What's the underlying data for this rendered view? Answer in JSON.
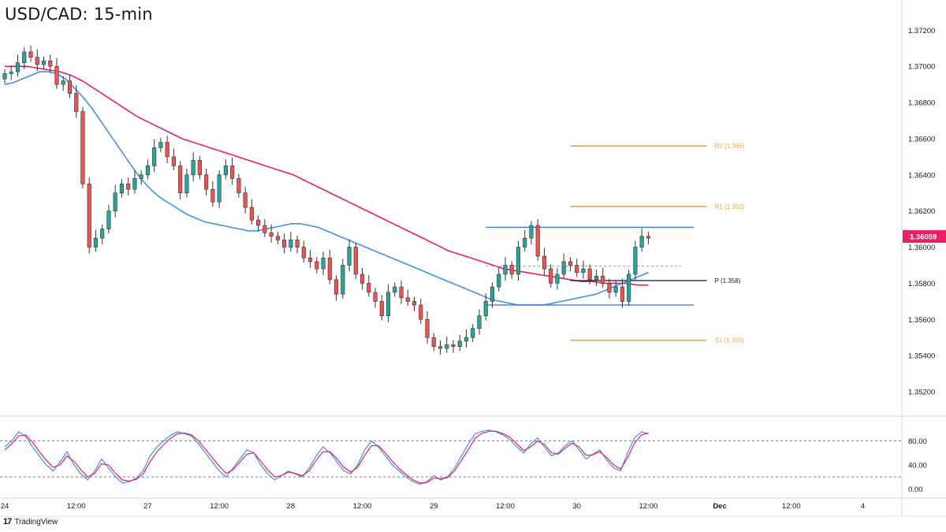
{
  "title": "USD/CAD: 15-min",
  "branding": {
    "logo": "17",
    "name": "TradingView"
  },
  "colors": {
    "bull": "#26a69a",
    "bear": "#ef5350",
    "wick": "#333333",
    "ma_short": "#3d93e6",
    "ma_long": "#e91e63",
    "pivot_levels": "#f2a03d",
    "range_lines": "#2f6fd6",
    "pivot_line": "#131722",
    "price_badge": "#e91e63",
    "stoch_k": "#3d93e6",
    "stoch_d": "#e91e63"
  },
  "price_badge": "1.36059",
  "chart_data": [
    {
      "type": "candlestick",
      "title": "USD/CAD: 15-min",
      "ylim": [
        1.351,
        1.3728
      ],
      "y_ticks": [
        "1.37200",
        "1.37000",
        "1.36800",
        "1.36600",
        "1.36400",
        "1.36200",
        "1.36000",
        "1.35800",
        "1.35600",
        "1.35400",
        "1.35200"
      ],
      "x_ticks": [
        {
          "t": 0,
          "label": "24"
        },
        {
          "t": 11,
          "label": "12:00"
        },
        {
          "t": 22,
          "label": "27"
        },
        {
          "t": 33,
          "label": "12:00"
        },
        {
          "t": 44,
          "label": "28"
        },
        {
          "t": 55,
          "label": "12:00"
        },
        {
          "t": 66,
          "label": "29"
        },
        {
          "t": 77,
          "label": "12:00"
        },
        {
          "t": 88,
          "label": "30"
        },
        {
          "t": 99,
          "label": "12:00"
        },
        {
          "t": 110,
          "label": "Dec"
        },
        {
          "t": 121,
          "label": "12:00"
        },
        {
          "t": 132,
          "label": "4"
        }
      ],
      "x_range": [
        0,
        138
      ],
      "levels": [
        {
          "name": "R2",
          "label": "R2 (1.366)",
          "value": 1.3656,
          "kind": "pivot-level",
          "from": 87,
          "to": 108
        },
        {
          "name": "R1",
          "label": "R1 (1.362)",
          "value": 1.36225,
          "kind": "pivot-level",
          "from": 87,
          "to": 108
        },
        {
          "name": "P",
          "label": "P (1.358)",
          "value": 1.35815,
          "kind": "pivot",
          "from": 87,
          "to": 108
        },
        {
          "name": "S1",
          "label": "S1 (1.355)",
          "value": 1.35485,
          "kind": "pivot-level",
          "from": 87,
          "to": 108
        },
        {
          "name": "range-top",
          "label": "",
          "value": 1.3611,
          "kind": "range",
          "from": 74,
          "to": 106
        },
        {
          "name": "range-bottom",
          "label": "",
          "value": 1.3568,
          "kind": "range",
          "from": 74,
          "to": 106
        },
        {
          "name": "range-mid",
          "label": "",
          "value": 1.35895,
          "kind": "dashed",
          "from": 74,
          "to": 104
        }
      ],
      "close_series": [
        1.3696,
        1.3697,
        1.3702,
        1.3708,
        1.3705,
        1.3701,
        1.3703,
        1.37,
        1.369,
        1.3692,
        1.3685,
        1.3675,
        1.3635,
        1.36,
        1.3605,
        1.361,
        1.362,
        1.363,
        1.3635,
        1.3632,
        1.3638,
        1.364,
        1.3645,
        1.3655,
        1.3658,
        1.365,
        1.3645,
        1.363,
        1.364,
        1.3648,
        1.364,
        1.3632,
        1.3625,
        1.364,
        1.3645,
        1.3638,
        1.363,
        1.3622,
        1.3615,
        1.3612,
        1.3608,
        1.3606,
        1.3604,
        1.36,
        1.3604,
        1.36,
        1.3594,
        1.3592,
        1.3588,
        1.3594,
        1.3582,
        1.3574,
        1.359,
        1.36,
        1.3585,
        1.358,
        1.3575,
        1.357,
        1.3562,
        1.3575,
        1.3578,
        1.3572,
        1.357,
        1.3568,
        1.356,
        1.355,
        1.3545,
        1.3544,
        1.3546,
        1.3545,
        1.3548,
        1.355,
        1.3555,
        1.3562,
        1.357,
        1.3578,
        1.3585,
        1.359,
        1.3585,
        1.36,
        1.3605,
        1.3612,
        1.3595,
        1.3588,
        1.358,
        1.3585,
        1.3592,
        1.359,
        1.3586,
        1.3588,
        1.3582,
        1.3584,
        1.358,
        1.3575,
        1.3578,
        1.357,
        1.3585,
        1.36,
        1.3606,
        1.3605
      ],
      "ma_short_series": [
        1.369,
        1.3691,
        1.3693,
        1.3695,
        1.3697,
        1.3697,
        1.3696,
        1.3693,
        1.3688,
        1.3683,
        1.3677,
        1.367,
        1.3663,
        1.3656,
        1.3649,
        1.3642,
        1.3636,
        1.3631,
        1.3627,
        1.3624,
        1.3621,
        1.3618,
        1.3616,
        1.3614,
        1.3613,
        1.3612,
        1.3611,
        1.361,
        1.3609,
        1.3609,
        1.361,
        1.3611,
        1.3612,
        1.3613,
        1.3613,
        1.3612,
        1.3611,
        1.3609,
        1.3607,
        1.3605,
        1.3603,
        1.3601,
        1.3599,
        1.3597,
        1.3595,
        1.3593,
        1.3591,
        1.3589,
        1.3587,
        1.3585,
        1.3583,
        1.3581,
        1.3579,
        1.3577,
        1.3575,
        1.3573,
        1.3571,
        1.357,
        1.3569,
        1.3568,
        1.3568,
        1.3568,
        1.3568,
        1.3569,
        1.357,
        1.3571,
        1.3572,
        1.3573,
        1.3574,
        1.3576,
        1.3578,
        1.358,
        1.3582,
        1.3584,
        1.3586
      ],
      "ma_long_series": [
        1.37,
        1.37,
        1.37,
        1.3699,
        1.3698,
        1.3697,
        1.3695,
        1.3692,
        1.3688,
        1.3684,
        1.368,
        1.3676,
        1.3672,
        1.3669,
        1.3666,
        1.3663,
        1.366,
        1.3658,
        1.3656,
        1.3654,
        1.3652,
        1.365,
        1.3648,
        1.3646,
        1.3644,
        1.3642,
        1.364,
        1.3637,
        1.3634,
        1.3631,
        1.3628,
        1.3625,
        1.3622,
        1.3619,
        1.3616,
        1.3613,
        1.361,
        1.3607,
        1.3604,
        1.3601,
        1.3598,
        1.3596,
        1.3594,
        1.3592,
        1.359,
        1.3588,
        1.3587,
        1.3586,
        1.3585,
        1.3584,
        1.3583,
        1.3582,
        1.3581,
        1.3581,
        1.358,
        1.358,
        1.358,
        1.3579,
        1.3579
      ]
    },
    {
      "type": "line",
      "title": "",
      "ylim": [
        -10,
        112
      ],
      "y_ticks": [
        "80.00",
        "40.00",
        "0.00"
      ],
      "bands": [
        80,
        20
      ],
      "series": [
        {
          "values": [
            70,
            80,
            95,
            88,
            70,
            55,
            40,
            30,
            45,
            62,
            40,
            25,
            15,
            30,
            50,
            35,
            20,
            10,
            12,
            18,
            30,
            55,
            70,
            80,
            90,
            95,
            92,
            88,
            75,
            60,
            45,
            30,
            20,
            35,
            50,
            65,
            60,
            40,
            25,
            15,
            22,
            30,
            25,
            20,
            35,
            55,
            70,
            60,
            45,
            30,
            25,
            40,
            65,
            80,
            70,
            55,
            40,
            30,
            20,
            12,
            8,
            12,
            22,
            15,
            20,
            35,
            55,
            75,
            92,
            96,
            98,
            95,
            90,
            82,
            70,
            60,
            75,
            85,
            70,
            55,
            60,
            72,
            80,
            65,
            50,
            58,
            65,
            48,
            35,
            30,
            60,
            85,
            95,
            92
          ]
        },
        {
          "values": [
            65,
            75,
            88,
            90,
            78,
            62,
            48,
            36,
            40,
            55,
            46,
            32,
            20,
            26,
            42,
            40,
            26,
            15,
            13,
            16,
            25,
            45,
            62,
            74,
            85,
            92,
            93,
            90,
            80,
            66,
            52,
            38,
            26,
            32,
            45,
            58,
            60,
            46,
            32,
            20,
            22,
            28,
            26,
            22,
            30,
            48,
            62,
            62,
            50,
            36,
            28,
            36,
            56,
            72,
            72,
            60,
            46,
            34,
            24,
            15,
            10,
            11,
            18,
            17,
            19,
            30,
            48,
            66,
            85,
            93,
            96,
            96,
            92,
            86,
            75,
            64,
            70,
            80,
            74,
            60,
            58,
            68,
            76,
            70,
            56,
            57,
            62,
            52,
            40,
            33,
            52,
            76,
            90,
            93
          ]
        }
      ]
    }
  ]
}
